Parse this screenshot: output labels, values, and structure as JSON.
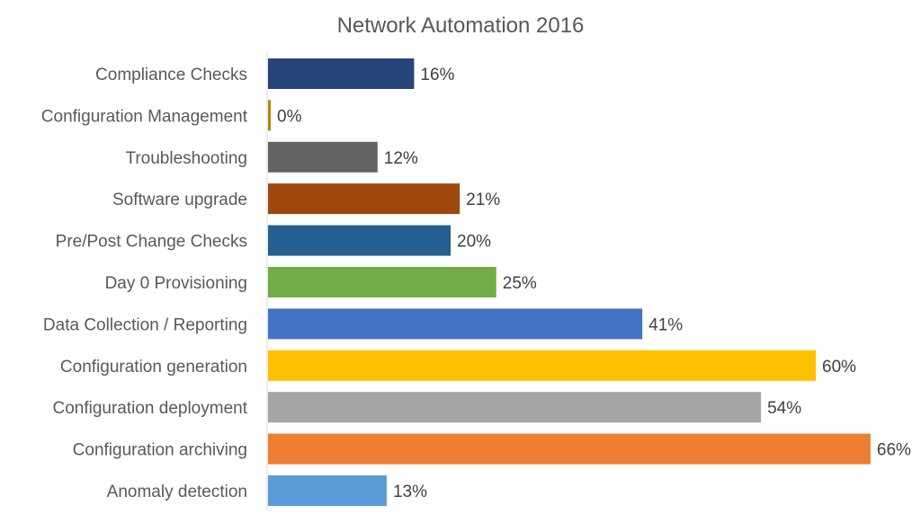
{
  "chart_data": {
    "type": "bar",
    "orientation": "horizontal",
    "title": "Network Automation 2016",
    "xlabel": "",
    "ylabel": "",
    "value_suffix": "%",
    "xlim": [
      0,
      66
    ],
    "grid": false,
    "legend": "none",
    "categories": [
      "Compliance Checks",
      "Configuration Management",
      "Troubleshooting",
      "Software upgrade",
      "Pre/Post Change Checks",
      "Day 0 Provisioning ",
      "Data Collection / Reporting",
      "Configuration generation",
      "Configuration deployment",
      "Configuration archiving",
      "Anomaly detection"
    ],
    "values": [
      16,
      0,
      12,
      21,
      20,
      25,
      41,
      60,
      54,
      66,
      13
    ],
    "value_labels": [
      "16%",
      "0%",
      "12%",
      "21%",
      "20%",
      "25%",
      "41%",
      "60%",
      "54%",
      "66%",
      "13%"
    ],
    "colors": [
      "#264478",
      "#B38700",
      "#636363",
      "#9E480E",
      "#255E91",
      "#70AD47",
      "#4472C4",
      "#FFC000",
      "#A5A5A5",
      "#ED7D31",
      "#5B9BD5"
    ]
  }
}
